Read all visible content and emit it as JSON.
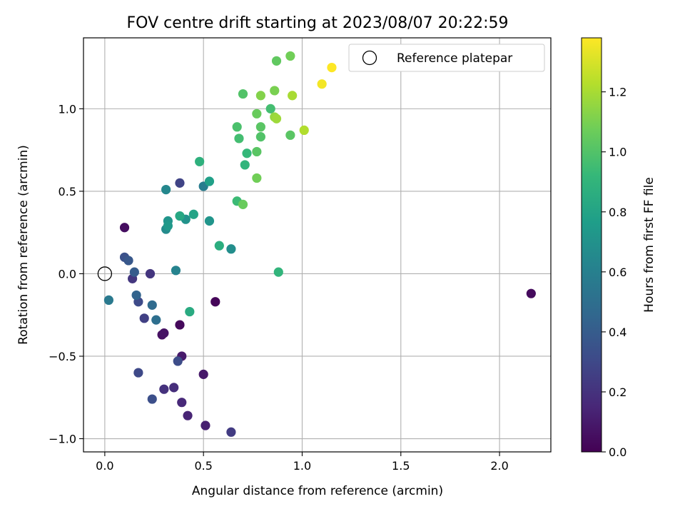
{
  "chart_data": {
    "type": "scatter",
    "title": "FOV centre drift starting at 2023/08/07 20:22:59",
    "xlabel": "Angular distance from reference (arcmin)",
    "ylabel": "Rotation from reference (arcmin)",
    "xlim": [
      -0.108,
      2.26
    ],
    "ylim": [
      -1.08,
      1.43
    ],
    "x_ticks": [
      0.0,
      0.5,
      1.0,
      1.5,
      2.0
    ],
    "x_tick_labels": [
      "0.0",
      "0.5",
      "1.0",
      "1.5",
      "2.0"
    ],
    "y_ticks": [
      -1.0,
      -0.5,
      0.0,
      0.5,
      1.0
    ],
    "y_tick_labels": [
      "−1.0",
      "−0.5",
      "0.0",
      "0.5",
      "1.0"
    ],
    "grid": true,
    "legend": {
      "placement": "top-right",
      "entries": [
        "Reference platepar"
      ]
    },
    "reference_point": {
      "name": "Reference platepar",
      "x": 0.0,
      "y": 0.0
    },
    "colorbar": {
      "label": "Hours from first FF file",
      "range": [
        0.0,
        1.38
      ],
      "ticks": [
        0.0,
        0.2,
        0.4,
        0.6,
        0.8,
        1.0,
        1.2
      ],
      "tick_labels": [
        "0.0",
        "0.2",
        "0.4",
        "0.6",
        "0.8",
        "1.0",
        "1.2"
      ],
      "colormap": "viridis"
    },
    "points": [
      {
        "x": 0.1,
        "y": 0.28,
        "c": 0.05
      },
      {
        "x": 0.29,
        "y": -0.37,
        "c": 0.06
      },
      {
        "x": 0.3,
        "y": -0.36,
        "c": 0.07
      },
      {
        "x": 0.38,
        "y": -0.31,
        "c": 0.03
      },
      {
        "x": 0.56,
        "y": -0.17,
        "c": 0.02
      },
      {
        "x": 2.16,
        "y": -0.12,
        "c": 0.04
      },
      {
        "x": 0.39,
        "y": -0.5,
        "c": 0.1
      },
      {
        "x": 0.5,
        "y": -0.61,
        "c": 0.09
      },
      {
        "x": 0.51,
        "y": -0.92,
        "c": 0.12
      },
      {
        "x": 0.42,
        "y": -0.86,
        "c": 0.14
      },
      {
        "x": 0.39,
        "y": -0.78,
        "c": 0.16
      },
      {
        "x": 0.35,
        "y": -0.69,
        "c": 0.18
      },
      {
        "x": 0.3,
        "y": -0.7,
        "c": 0.2
      },
      {
        "x": 0.64,
        "y": -0.96,
        "c": 0.24
      },
      {
        "x": 0.14,
        "y": -0.03,
        "c": 0.22
      },
      {
        "x": 0.23,
        "y": 0.0,
        "c": 0.21
      },
      {
        "x": 0.2,
        "y": -0.27,
        "c": 0.26
      },
      {
        "x": 0.17,
        "y": -0.6,
        "c": 0.3
      },
      {
        "x": 0.24,
        "y": -0.76,
        "c": 0.33
      },
      {
        "x": 0.37,
        "y": -0.53,
        "c": 0.32
      },
      {
        "x": 0.38,
        "y": 0.55,
        "c": 0.28
      },
      {
        "x": 0.17,
        "y": -0.17,
        "c": 0.31
      },
      {
        "x": 0.1,
        "y": 0.1,
        "c": 0.34
      },
      {
        "x": 0.12,
        "y": 0.08,
        "c": 0.38
      },
      {
        "x": 0.15,
        "y": 0.01,
        "c": 0.4
      },
      {
        "x": 0.16,
        "y": -0.13,
        "c": 0.44
      },
      {
        "x": 0.24,
        "y": -0.19,
        "c": 0.48
      },
      {
        "x": 0.26,
        "y": -0.28,
        "c": 0.5
      },
      {
        "x": 0.02,
        "y": -0.16,
        "c": 0.56
      },
      {
        "x": 0.5,
        "y": 0.53,
        "c": 0.58
      },
      {
        "x": 0.31,
        "y": 0.51,
        "c": 0.64
      },
      {
        "x": 0.31,
        "y": 0.27,
        "c": 0.66
      },
      {
        "x": 0.36,
        "y": 0.02,
        "c": 0.62
      },
      {
        "x": 0.64,
        "y": 0.15,
        "c": 0.68
      },
      {
        "x": 0.41,
        "y": 0.33,
        "c": 0.7
      },
      {
        "x": 0.32,
        "y": 0.32,
        "c": 0.72
      },
      {
        "x": 0.32,
        "y": 0.29,
        "c": 0.74
      },
      {
        "x": 0.53,
        "y": 0.32,
        "c": 0.72
      },
      {
        "x": 0.53,
        "y": 0.56,
        "c": 0.78
      },
      {
        "x": 0.45,
        "y": 0.36,
        "c": 0.8
      },
      {
        "x": 0.38,
        "y": 0.35,
        "c": 0.82
      },
      {
        "x": 0.58,
        "y": 0.17,
        "c": 0.86
      },
      {
        "x": 0.43,
        "y": -0.23,
        "c": 0.84
      },
      {
        "x": 0.48,
        "y": 0.68,
        "c": 0.88
      },
      {
        "x": 0.71,
        "y": 0.66,
        "c": 0.9
      },
      {
        "x": 0.72,
        "y": 0.73,
        "c": 0.92
      },
      {
        "x": 0.67,
        "y": 0.44,
        "c": 0.94
      },
      {
        "x": 0.88,
        "y": 0.01,
        "c": 0.9
      },
      {
        "x": 0.68,
        "y": 0.82,
        "c": 0.96
      },
      {
        "x": 0.67,
        "y": 0.89,
        "c": 0.98
      },
      {
        "x": 0.7,
        "y": 1.09,
        "c": 1.0
      },
      {
        "x": 0.84,
        "y": 1.0,
        "c": 0.96
      },
      {
        "x": 0.79,
        "y": 0.83,
        "c": 1.0
      },
      {
        "x": 0.77,
        "y": 0.74,
        "c": 1.02
      },
      {
        "x": 0.79,
        "y": 0.89,
        "c": 1.02
      },
      {
        "x": 0.94,
        "y": 0.84,
        "c": 1.02
      },
      {
        "x": 0.87,
        "y": 1.29,
        "c": 1.04
      },
      {
        "x": 0.7,
        "y": 0.42,
        "c": 1.06
      },
      {
        "x": 0.77,
        "y": 0.58,
        "c": 1.08
      },
      {
        "x": 0.77,
        "y": 0.97,
        "c": 1.06
      },
      {
        "x": 0.94,
        "y": 1.32,
        "c": 1.08
      },
      {
        "x": 0.79,
        "y": 1.08,
        "c": 1.12
      },
      {
        "x": 0.86,
        "y": 1.11,
        "c": 1.1
      },
      {
        "x": 0.86,
        "y": 0.95,
        "c": 1.16
      },
      {
        "x": 0.87,
        "y": 0.94,
        "c": 1.18
      },
      {
        "x": 0.95,
        "y": 1.08,
        "c": 1.2
      },
      {
        "x": 1.01,
        "y": 0.87,
        "c": 1.22
      },
      {
        "x": 1.1,
        "y": 1.15,
        "c": 1.36
      },
      {
        "x": 1.15,
        "y": 1.25,
        "c": 1.38
      }
    ]
  }
}
